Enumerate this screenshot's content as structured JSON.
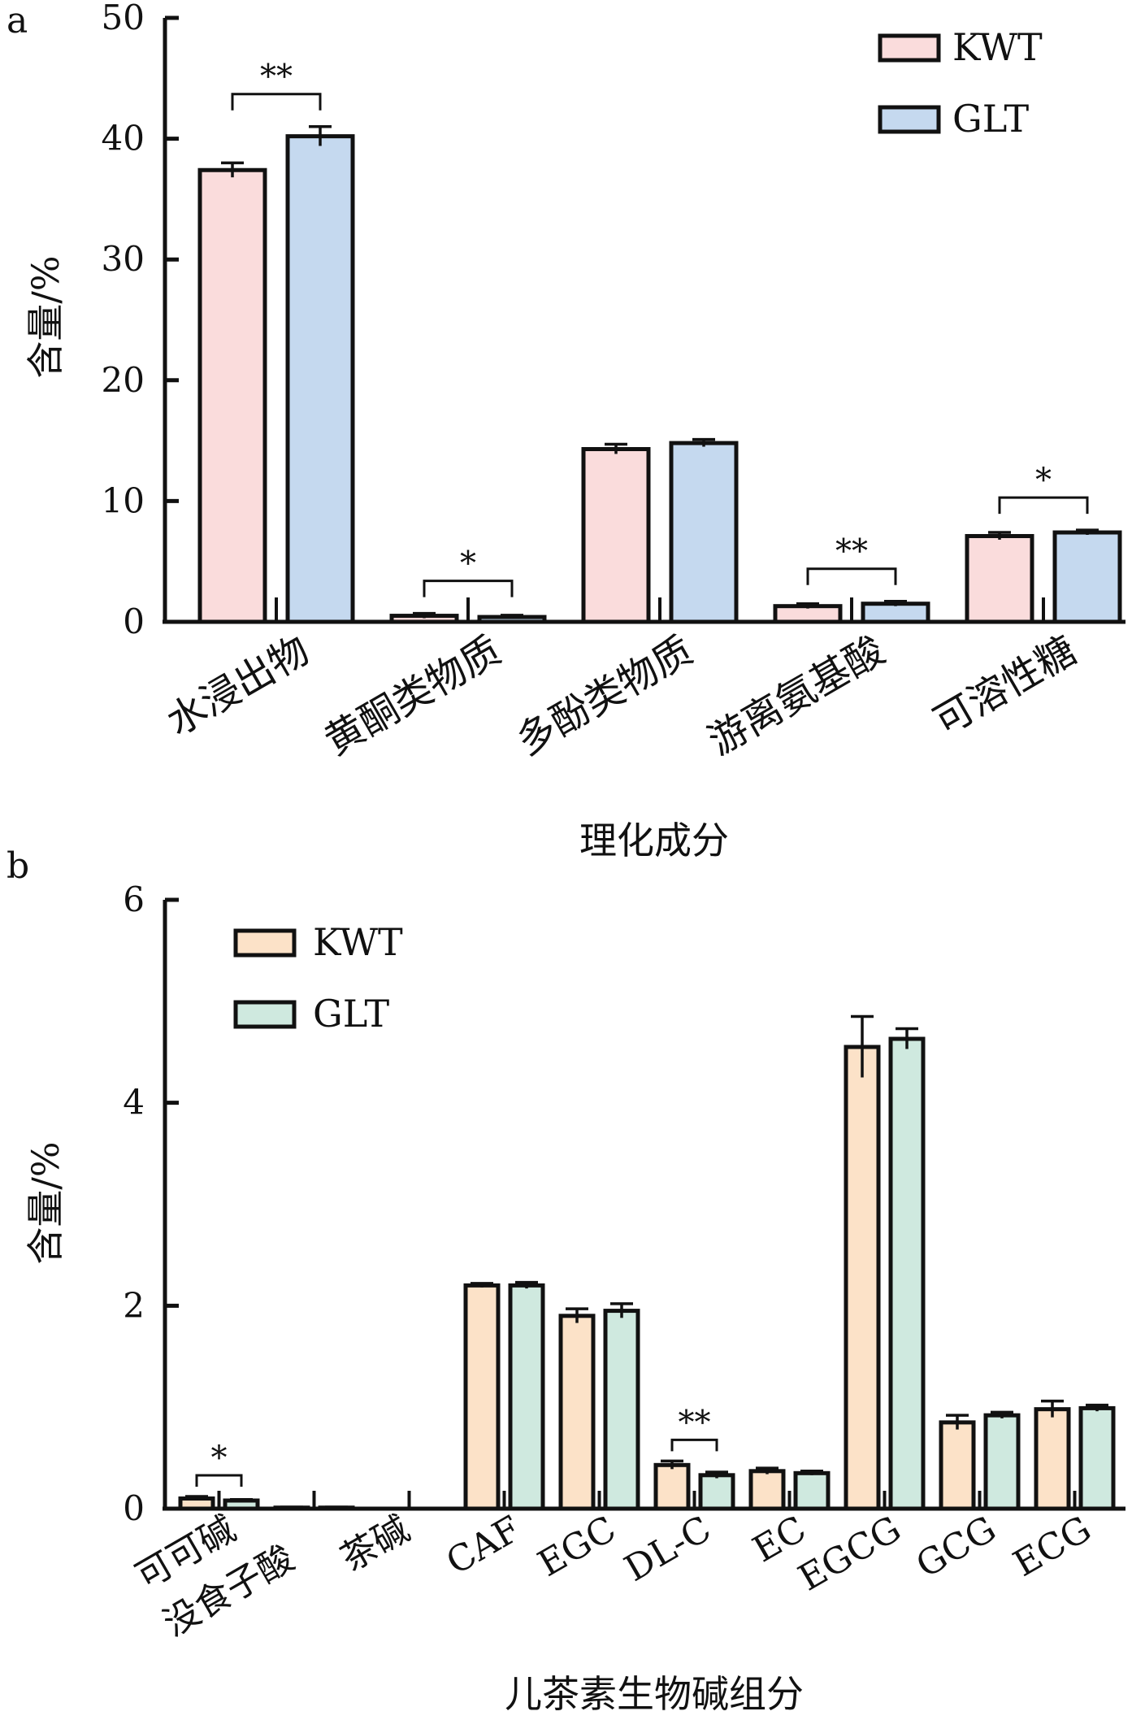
{
  "colors": {
    "panel_a": {
      "KWT": "#fadcdc",
      "GLT": "#c5d9ef"
    },
    "panel_b": {
      "KWT": "#fce2c8",
      "GLT": "#cfe9df"
    }
  },
  "chart_data": [
    {
      "panel_label": "a",
      "type": "bar",
      "ylabel": "含量/%",
      "xlabel": "理化成分",
      "ylim": [
        0,
        50
      ],
      "yticks": [
        "0",
        "10",
        "20",
        "30",
        "40",
        "50"
      ],
      "categories": [
        "水浸出物",
        "黄酮类物质",
        "多酚类物质",
        "游离氨基酸",
        "可溶性糖"
      ],
      "legend": {
        "position": "top-right",
        "entries": [
          "KWT",
          "GLT"
        ]
      },
      "series": [
        {
          "name": "KWT",
          "values": [
            37.4,
            0.5,
            14.3,
            1.3,
            7.1
          ],
          "errors": [
            0.6,
            0.2,
            0.4,
            0.2,
            0.3
          ]
        },
        {
          "name": "GLT",
          "values": [
            40.2,
            0.4,
            14.8,
            1.5,
            7.4
          ],
          "errors": [
            0.8,
            0.15,
            0.3,
            0.2,
            0.2
          ]
        }
      ],
      "annotations": [
        {
          "category_index": 0,
          "text": "**"
        },
        {
          "category_index": 1,
          "text": "*"
        },
        {
          "category_index": 3,
          "text": "**"
        },
        {
          "category_index": 4,
          "text": "*"
        }
      ]
    },
    {
      "panel_label": "b",
      "type": "bar",
      "ylabel": "含量/%",
      "xlabel": "儿茶素生物碱组分",
      "ylim": [
        0,
        6
      ],
      "yticks": [
        "0",
        "2",
        "4",
        "6"
      ],
      "categories": [
        "可可碱",
        "没食子酸",
        "茶碱",
        "CAF",
        "EGC",
        "DL-C",
        "EC",
        "EGCG",
        "GCG",
        "ECG"
      ],
      "legend": {
        "position": "top-left",
        "entries": [
          "KWT",
          "GLT"
        ]
      },
      "series": [
        {
          "name": "KWT",
          "values": [
            0.1,
            0.01,
            0.0,
            2.2,
            1.9,
            0.43,
            0.37,
            4.55,
            0.85,
            0.98
          ],
          "errors": [
            0.02,
            0.005,
            0.0,
            0.02,
            0.07,
            0.04,
            0.03,
            0.3,
            0.07,
            0.08
          ]
        },
        {
          "name": "GLT",
          "values": [
            0.08,
            0.01,
            0.0,
            2.2,
            1.95,
            0.33,
            0.35,
            4.63,
            0.92,
            0.99
          ],
          "errors": [
            0.01,
            0.005,
            0.0,
            0.03,
            0.07,
            0.03,
            0.02,
            0.1,
            0.03,
            0.03
          ]
        }
      ],
      "annotations": [
        {
          "category_index": 0,
          "text": "*"
        },
        {
          "category_index": 5,
          "text": "**"
        }
      ]
    }
  ]
}
